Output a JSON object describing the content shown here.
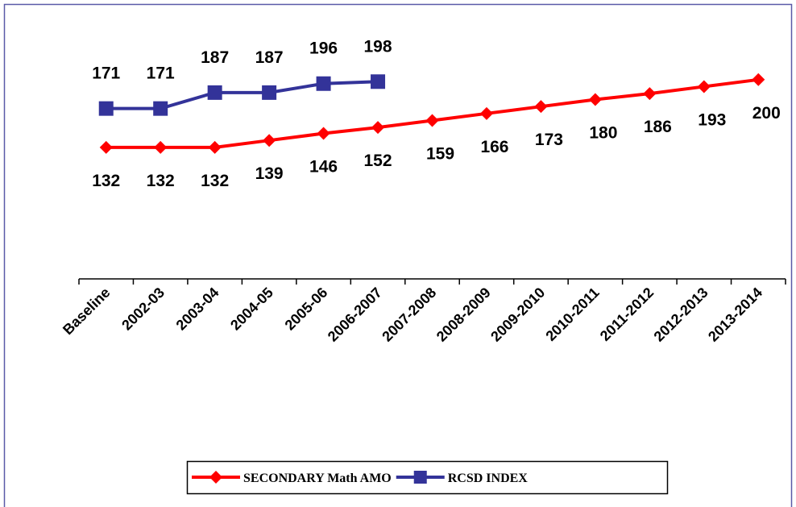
{
  "chart_data": {
    "type": "line",
    "categories": [
      "Baseline",
      "2002-03",
      "2003-04",
      "2004-05",
      "2005-06",
      "2006-2007",
      "2007-2008",
      "2008-2009",
      "2009-2010",
      "2010-2011",
      "2011-2012",
      "2012-2013",
      "2013-2014"
    ],
    "series": [
      {
        "name": "SECONDARY Math AMO",
        "color": "#ff0000",
        "marker": "diamond",
        "values": [
          132,
          132,
          132,
          139,
          146,
          152,
          159,
          166,
          173,
          180,
          186,
          193,
          200
        ]
      },
      {
        "name": "RCSD INDEX",
        "color": "#333399",
        "marker": "square",
        "values": [
          171,
          171,
          187,
          187,
          196,
          198,
          null,
          null,
          null,
          null,
          null,
          null,
          null
        ]
      }
    ],
    "ylim": [
      0,
      250
    ],
    "legend": "bottom"
  }
}
